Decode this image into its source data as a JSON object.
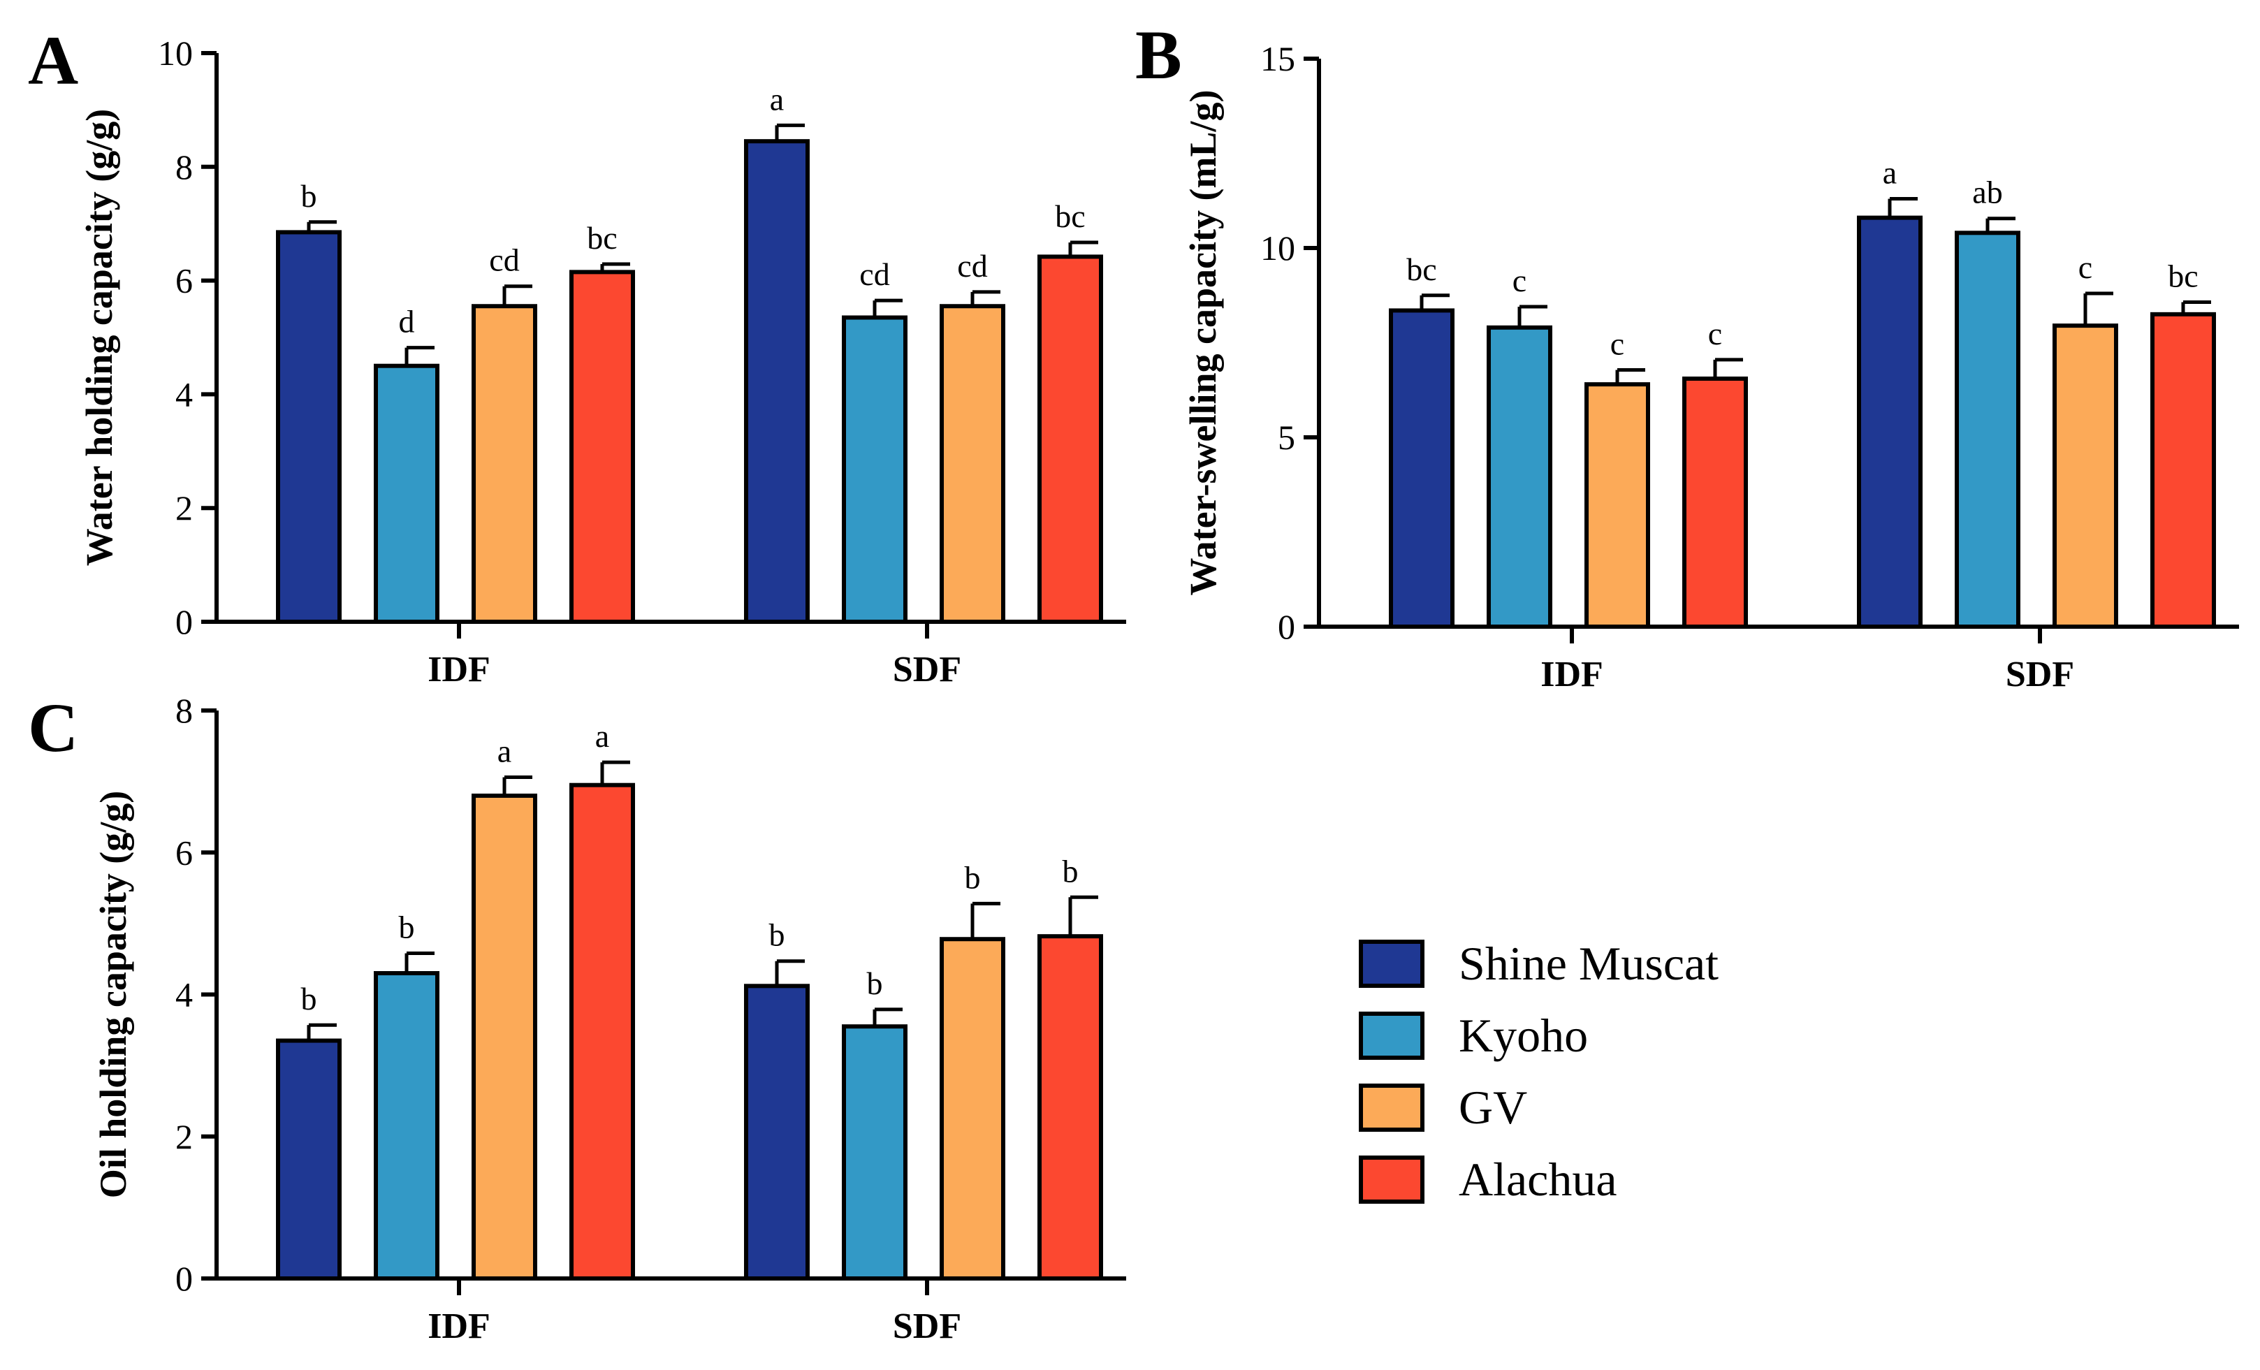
{
  "legend": {
    "placement": "bottom-right",
    "items": [
      {
        "name": "Shine Muscat",
        "color": "#1f3893"
      },
      {
        "name": "Kyoho",
        "color": "#3399c6"
      },
      {
        "name": "GV",
        "color": "#fcaa58"
      },
      {
        "name": "Alachua",
        "color": "#fc4830"
      }
    ]
  },
  "chart_data": [
    {
      "panel": "A",
      "type": "bar",
      "ylabel": "Water holding capacity (g/g)",
      "ylim": [
        0,
        10
      ],
      "yticks": [
        0,
        2,
        4,
        6,
        8,
        10
      ],
      "categories": [
        "IDF",
        "SDF"
      ],
      "series": [
        {
          "name": "Shine Muscat",
          "values": [
            6.85,
            8.45
          ],
          "errors": [
            0.18,
            0.28
          ],
          "letters": [
            "b",
            "a"
          ]
        },
        {
          "name": "Kyoho",
          "values": [
            4.5,
            5.35
          ],
          "errors": [
            0.32,
            0.3
          ],
          "letters": [
            "d",
            "cd"
          ]
        },
        {
          "name": "GV",
          "values": [
            5.55,
            5.55
          ],
          "errors": [
            0.35,
            0.25
          ],
          "letters": [
            "cd",
            "cd"
          ]
        },
        {
          "name": "Alachua",
          "values": [
            6.15,
            6.42
          ],
          "errors": [
            0.14,
            0.25
          ],
          "letters": [
            "bc",
            "bc"
          ]
        }
      ]
    },
    {
      "panel": "B",
      "type": "bar",
      "ylabel": "Water-swelling capacity (mL/g)",
      "ylim": [
        0,
        15
      ],
      "yticks": [
        0,
        5,
        10,
        15
      ],
      "categories": [
        "IDF",
        "SDF"
      ],
      "series": [
        {
          "name": "Shine Muscat",
          "values": [
            8.35,
            10.8
          ],
          "errors": [
            0.4,
            0.5
          ],
          "letters": [
            "bc",
            "a"
          ]
        },
        {
          "name": "Kyoho",
          "values": [
            7.9,
            10.4
          ],
          "errors": [
            0.55,
            0.38
          ],
          "letters": [
            "c",
            "ab"
          ]
        },
        {
          "name": "GV",
          "values": [
            6.4,
            7.95
          ],
          "errors": [
            0.38,
            0.85
          ],
          "letters": [
            "c",
            "c"
          ]
        },
        {
          "name": "Alachua",
          "values": [
            6.55,
            8.25
          ],
          "errors": [
            0.5,
            0.32
          ],
          "letters": [
            "c",
            "bc"
          ]
        }
      ]
    },
    {
      "panel": "C",
      "type": "bar",
      "ylabel": "Oil holding capacity (g/g)",
      "ylim": [
        0,
        8
      ],
      "yticks": [
        0,
        2,
        4,
        6,
        8
      ],
      "categories": [
        "IDF",
        "SDF"
      ],
      "series": [
        {
          "name": "Shine Muscat",
          "values": [
            3.35,
            4.12
          ],
          "errors": [
            0.22,
            0.35
          ],
          "letters": [
            "b",
            "b"
          ]
        },
        {
          "name": "Kyoho",
          "values": [
            4.3,
            3.55
          ],
          "errors": [
            0.28,
            0.24
          ],
          "letters": [
            "b",
            "b"
          ]
        },
        {
          "name": "GV",
          "values": [
            6.8,
            4.78
          ],
          "errors": [
            0.26,
            0.5
          ],
          "letters": [
            "a",
            "b"
          ]
        },
        {
          "name": "Alachua",
          "values": [
            6.95,
            4.82
          ],
          "errors": [
            0.32,
            0.55
          ],
          "letters": [
            "a",
            "b"
          ]
        }
      ]
    }
  ]
}
